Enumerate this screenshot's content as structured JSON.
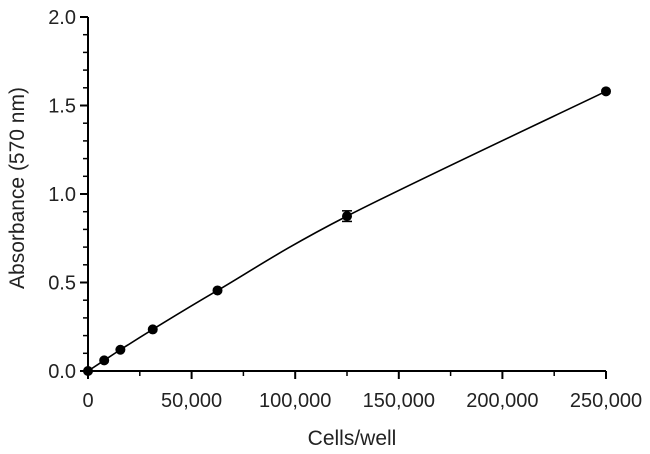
{
  "chart_data": {
    "type": "scatter",
    "title": "",
    "xlabel": "Cells/well",
    "ylabel": "Absorbance (570 nm)",
    "xlim": [
      0,
      250000
    ],
    "ylim": [
      0.0,
      2.0
    ],
    "x_ticks": [
      0,
      50000,
      100000,
      150000,
      200000,
      250000
    ],
    "x_tick_labels": [
      "0",
      "50,000",
      "100,000",
      "150,000",
      "200,000",
      "250,000"
    ],
    "y_ticks": [
      0.0,
      0.5,
      1.0,
      1.5,
      2.0
    ],
    "y_tick_labels": [
      "0.0",
      "0.5",
      "1.0",
      "1.5",
      "2.0"
    ],
    "grid": false,
    "legend": "none",
    "fit_line": true,
    "points": [
      {
        "x": 0,
        "y": 0.0,
        "err": 0
      },
      {
        "x": 7813,
        "y": 0.06,
        "err": 0
      },
      {
        "x": 15625,
        "y": 0.12,
        "err": 0
      },
      {
        "x": 31250,
        "y": 0.235,
        "err": 0
      },
      {
        "x": 62500,
        "y": 0.455,
        "err": 0
      },
      {
        "x": 125000,
        "y": 0.875,
        "err": 0.03
      },
      {
        "x": 250000,
        "y": 1.58,
        "err": 0
      }
    ],
    "colors": {
      "marker": "#000000",
      "line": "#000000",
      "axis": "#000000"
    }
  }
}
